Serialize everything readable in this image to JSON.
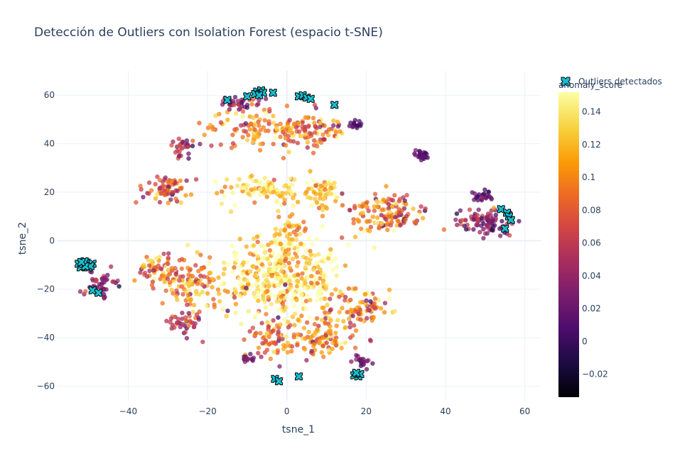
{
  "chart_data": {
    "type": "scatter",
    "title": "Detección de Outliers con Isolation Forest (espacio t-SNE)",
    "xlabel": "tsne_1",
    "ylabel": "tsne_2",
    "xlim": [
      -58,
      64
    ],
    "ylim": [
      -66,
      70
    ],
    "x_ticks": [
      -40,
      -20,
      0,
      20,
      40,
      60
    ],
    "y_ticks": [
      -60,
      -40,
      -20,
      0,
      20,
      40,
      60
    ],
    "x_tick_labels": [
      "−40",
      "−20",
      "0",
      "20",
      "40",
      "60"
    ],
    "y_tick_labels": [
      "−60",
      "−40",
      "−20",
      "0",
      "20",
      "40",
      "60"
    ],
    "grid": true,
    "colorscale": "Inferno",
    "colorbar": {
      "title": "anomaly_score",
      "range": [
        -0.034,
        0.152
      ],
      "ticks": [
        -0.02,
        0,
        0.02,
        0.04,
        0.06,
        0.08,
        0.1,
        0.12,
        0.14
      ],
      "tick_labels": [
        "−0.02",
        "0",
        "0.02",
        "0.04",
        "0.06",
        "0.08",
        "0.1",
        "0.12",
        "0.14"
      ]
    },
    "legend": {
      "position": "top-right",
      "entries": [
        "Outliers detectados"
      ]
    },
    "clusters": [
      {
        "cx": -2,
        "cy": -15,
        "sx": 8,
        "sy": 9,
        "n": 420,
        "score_center": 0.135,
        "score_spread": 0.03
      },
      {
        "cx": -6,
        "cy": 21,
        "sx": 5,
        "sy": 3,
        "n": 90,
        "score_center": 0.13,
        "score_spread": 0.02
      },
      {
        "cx": 9,
        "cy": 19,
        "sx": 3,
        "sy": 4,
        "n": 60,
        "score_center": 0.125,
        "score_spread": 0.02
      },
      {
        "cx": 1,
        "cy": 5,
        "sx": 2,
        "sy": 6,
        "n": 45,
        "score_center": 0.11,
        "score_spread": 0.02
      },
      {
        "cx": -24,
        "cy": -18,
        "sx": 4,
        "sy": 5,
        "n": 90,
        "score_center": 0.1,
        "score_spread": 0.025
      },
      {
        "cx": -32,
        "cy": -12,
        "sx": 3,
        "sy": 4,
        "n": 70,
        "score_center": 0.1,
        "score_spread": 0.03
      },
      {
        "cx": 18,
        "cy": -28,
        "sx": 4,
        "sy": 5,
        "n": 90,
        "score_center": 0.1,
        "score_spread": 0.03
      },
      {
        "cx": 9,
        "cy": -40,
        "sx": 5,
        "sy": 4,
        "n": 100,
        "score_center": 0.095,
        "score_spread": 0.03
      },
      {
        "cx": -4,
        "cy": -40,
        "sx": 3,
        "sy": 4,
        "n": 60,
        "score_center": 0.09,
        "score_spread": 0.03
      },
      {
        "cx": -5,
        "cy": 46,
        "sx": 8,
        "sy": 4,
        "n": 140,
        "score_center": 0.095,
        "score_spread": 0.03
      },
      {
        "cx": 7,
        "cy": 46,
        "sx": 4,
        "sy": 3,
        "n": 60,
        "score_center": 0.085,
        "score_spread": 0.03
      },
      {
        "cx": 22,
        "cy": 12,
        "sx": 4,
        "sy": 4,
        "n": 80,
        "score_center": 0.095,
        "score_spread": 0.03
      },
      {
        "cx": 29,
        "cy": 12,
        "sx": 3,
        "sy": 4,
        "n": 60,
        "score_center": 0.08,
        "score_spread": 0.03
      },
      {
        "cx": -30,
        "cy": 21,
        "sx": 3,
        "sy": 3,
        "n": 70,
        "score_center": 0.07,
        "score_spread": 0.03
      },
      {
        "cx": 50,
        "cy": 8,
        "sx": 4,
        "sy": 3,
        "n": 90,
        "score_center": 0.04,
        "score_spread": 0.025
      },
      {
        "cx": -47,
        "cy": -18,
        "sx": 2,
        "sy": 2.5,
        "n": 45,
        "score_center": 0.03,
        "score_spread": 0.015
      },
      {
        "cx": 34,
        "cy": 35,
        "sx": 1,
        "sy": 1.5,
        "n": 30,
        "score_center": 0.01,
        "score_spread": 0.01
      },
      {
        "cx": 50,
        "cy": 18,
        "sx": 1.5,
        "sy": 1.2,
        "n": 25,
        "score_center": 0.015,
        "score_spread": 0.01
      },
      {
        "cx": -26,
        "cy": -34,
        "sx": 2,
        "sy": 2.5,
        "n": 40,
        "score_center": 0.055,
        "score_spread": 0.02
      },
      {
        "cx": -12,
        "cy": 57,
        "sx": 3,
        "sy": 2,
        "n": 35,
        "score_center": 0.035,
        "score_spread": 0.02
      },
      {
        "cx": -26,
        "cy": 38,
        "sx": 2,
        "sy": 2,
        "n": 30,
        "score_center": 0.04,
        "score_spread": 0.02
      },
      {
        "cx": 18,
        "cy": 48,
        "sx": 1,
        "sy": 0.8,
        "n": 15,
        "score_center": 0.01,
        "score_spread": 0.008
      },
      {
        "cx": 19,
        "cy": -50,
        "sx": 1.5,
        "sy": 1.5,
        "n": 20,
        "score_center": 0.025,
        "score_spread": 0.015
      },
      {
        "cx": -10,
        "cy": -49,
        "sx": 1.5,
        "sy": 1,
        "n": 15,
        "score_center": 0.025,
        "score_spread": 0.015
      }
    ],
    "outliers": [
      {
        "x": -51.5,
        "y": -10
      },
      {
        "x": -50.5,
        "y": -9
      },
      {
        "x": -52,
        "y": -11
      },
      {
        "x": -50,
        "y": -11
      },
      {
        "x": -49,
        "y": -9.5
      },
      {
        "x": -51,
        "y": -8.5
      },
      {
        "x": -52.5,
        "y": -9.5
      },
      {
        "x": -49.5,
        "y": -10.5
      },
      {
        "x": -50.8,
        "y": -10.6
      },
      {
        "x": -51.8,
        "y": -8.8
      },
      {
        "x": -49,
        "y": -20.5
      },
      {
        "x": -47.5,
        "y": -21.5
      },
      {
        "x": -7.5,
        "y": 61.5
      },
      {
        "x": -6.5,
        "y": 62
      },
      {
        "x": -8,
        "y": 60.5
      },
      {
        "x": -6,
        "y": 61
      },
      {
        "x": -7,
        "y": 60
      },
      {
        "x": -10,
        "y": 59.5
      },
      {
        "x": -3.5,
        "y": 61
      },
      {
        "x": -15,
        "y": 58
      },
      {
        "x": 3,
        "y": 59.5
      },
      {
        "x": 4,
        "y": 60
      },
      {
        "x": 5,
        "y": 59
      },
      {
        "x": 6,
        "y": 58.5
      },
      {
        "x": 12,
        "y": 56
      },
      {
        "x": 54,
        "y": 13
      },
      {
        "x": 55.5,
        "y": 11.5
      },
      {
        "x": 56,
        "y": 10
      },
      {
        "x": 55,
        "y": 5
      },
      {
        "x": 56.5,
        "y": 8.5
      },
      {
        "x": -3,
        "y": -57
      },
      {
        "x": -2,
        "y": -58
      },
      {
        "x": 3,
        "y": -56
      },
      {
        "x": 17,
        "y": -55.5
      },
      {
        "x": 18,
        "y": -56
      },
      {
        "x": 18.5,
        "y": -55
      },
      {
        "x": 17.5,
        "y": -54.5
      }
    ]
  }
}
